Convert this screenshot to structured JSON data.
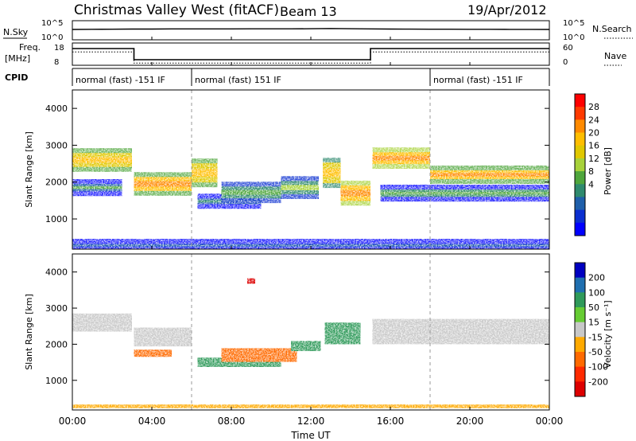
{
  "header": {
    "station": "Christmas Valley West (fitACF)",
    "beam": "Beam 13",
    "date": "19/Apr/2012"
  },
  "strip_labels": {
    "nsky": "N.Sky",
    "nsearch": "N.Search",
    "freq": "Freq.",
    "freq_unit": "[MHz]",
    "nave": "Nave",
    "cpid": "CPID"
  },
  "noise_axis": {
    "left_ticks": [
      "10^5",
      "10^0"
    ],
    "right_ticks": [
      "10^5",
      "10^0"
    ]
  },
  "freq_axis": {
    "left_ticks": [
      "18",
      "8"
    ],
    "right_ticks": [
      "60",
      "0"
    ]
  },
  "cpid_segments": [
    {
      "start_hour": 0,
      "end_hour": 6.0,
      "label": "normal (fast) -151 IF"
    },
    {
      "start_hour": 6.0,
      "end_hour": 18.0,
      "label": "normal (fast) 151 IF"
    },
    {
      "start_hour": 18.0,
      "end_hour": 24,
      "label": "normal (fast) -151 IF"
    }
  ],
  "time_axis": {
    "label": "Time UT",
    "ticks": [
      "00:00",
      "04:00",
      "08:00",
      "12:00",
      "16:00",
      "20:00",
      "00:00"
    ],
    "range_hours": [
      0,
      24
    ]
  },
  "range_axis": {
    "label": "Slant Range [km]",
    "ticks": [
      "4000",
      "3000",
      "2000",
      "1000"
    ],
    "range_km": [
      180,
      4500
    ]
  },
  "colorbars": {
    "power": {
      "label": "Power [dB]",
      "ticks": [
        "28",
        "24",
        "20",
        "16",
        "12",
        "8",
        "4"
      ],
      "colors": [
        "#ff0000",
        "#ff3a00",
        "#ff8a00",
        "#ffbe00",
        "#e0c800",
        "#a8d23a",
        "#4fa63c",
        "#2f8a6e",
        "#1f5faa",
        "#0b2fd0",
        "#0000ff"
      ]
    },
    "velocity": {
      "label": "Velocity [m s⁻¹]",
      "ticks": [
        "200",
        "100",
        "50",
        "15",
        "-15",
        "-50",
        "-100",
        "-200"
      ],
      "colors": [
        "#0000c0",
        "#1f6fb0",
        "#2f9a5a",
        "#66cc33",
        "#c8c8c8",
        "#ffaa00",
        "#ff6a00",
        "#ff2a00",
        "#dd0000"
      ]
    }
  },
  "chart_data": [
    {
      "type": "line",
      "title": "N.Sky / N.Search",
      "x_range": [
        0,
        24
      ],
      "y_scale": "log",
      "y_range": [
        1,
        100000
      ],
      "series": [
        {
          "name": "N.Sky",
          "x": [
            0,
            1,
            2,
            3,
            4,
            5,
            6,
            7,
            8,
            9,
            10,
            11,
            12,
            13,
            14,
            15,
            16,
            17,
            18,
            19,
            20,
            21,
            22,
            23,
            24
          ],
          "y": [
            500,
            550,
            600,
            650,
            650,
            700,
            700,
            720,
            720,
            740,
            760,
            760,
            800,
            900,
            800,
            700,
            650,
            620,
            600,
            580,
            560,
            560,
            540,
            540,
            520
          ]
        }
      ]
    },
    {
      "type": "line",
      "title": "Freq. / Nave",
      "x_range": [
        0,
        24
      ],
      "series": [
        {
          "name": "Freq.",
          "x": [
            0,
            3.1,
            3.1,
            15.0,
            15.0,
            24
          ],
          "y": [
            15.5,
            15.5,
            10.5,
            10.5,
            15.5,
            15.5
          ]
        },
        {
          "name": "Nave",
          "x": [
            0,
            3.1,
            3.1,
            15.0,
            15.0,
            24
          ],
          "y": [
            14,
            14,
            9,
            9,
            14,
            14
          ]
        }
      ]
    },
    {
      "type": "heatmap",
      "title": "Power [dB]",
      "xlabel": "Time UT",
      "ylabel": "Slant Range [km]",
      "x_range": [
        0,
        24
      ],
      "y_range": [
        180,
        4500
      ],
      "series": [
        {
          "start_hour": 0.0,
          "end_hour": 3.0,
          "center_km": 2600,
          "width_km": 380,
          "power_db": 24
        },
        {
          "start_hour": 0.0,
          "end_hour": 2.5,
          "center_km": 1850,
          "width_km": 200,
          "power_db": 12
        },
        {
          "start_hour": 3.1,
          "end_hour": 6.0,
          "center_km": 1950,
          "width_km": 380,
          "power_db": 26
        },
        {
          "start_hour": 6.0,
          "end_hour": 7.3,
          "center_km": 2250,
          "width_km": 520,
          "power_db": 24
        },
        {
          "start_hour": 6.3,
          "end_hour": 9.5,
          "center_km": 1480,
          "width_km": 150,
          "power_db": 10
        },
        {
          "start_hour": 7.5,
          "end_hour": 10.5,
          "center_km": 1720,
          "width_km": 320,
          "power_db": 14
        },
        {
          "start_hour": 10.5,
          "end_hour": 12.4,
          "center_km": 1850,
          "width_km": 360,
          "power_db": 15
        },
        {
          "start_hour": 12.6,
          "end_hour": 13.5,
          "center_km": 2250,
          "width_km": 560,
          "power_db": 22
        },
        {
          "start_hour": 13.5,
          "end_hour": 15.0,
          "center_km": 1700,
          "width_km": 420,
          "power_db": 27
        },
        {
          "start_hour": 15.1,
          "end_hour": 18.0,
          "center_km": 2650,
          "width_km": 320,
          "power_db": 27
        },
        {
          "start_hour": 18.0,
          "end_hour": 24.0,
          "center_km": 2200,
          "width_km": 240,
          "power_db": 25
        },
        {
          "start_hour": 15.5,
          "end_hour": 24.0,
          "center_km": 1700,
          "width_km": 200,
          "power_db": 13
        },
        {
          "start_hour": 0.0,
          "end_hour": 24.0,
          "center_km": 280,
          "width_km": 100,
          "power_db": 8
        }
      ]
    },
    {
      "type": "heatmap",
      "title": "Velocity [m s⁻¹]",
      "xlabel": "Time UT",
      "ylabel": "Slant Range [km]",
      "x_range": [
        0,
        24
      ],
      "y_range": [
        180,
        4500
      ],
      "series": [
        {
          "start_hour": 0.0,
          "end_hour": 3.0,
          "center_km": 2600,
          "width_km": 500,
          "velocity": 0
        },
        {
          "start_hour": 3.1,
          "end_hour": 6.0,
          "center_km": 2200,
          "width_km": 520,
          "velocity": 0
        },
        {
          "start_hour": 3.1,
          "end_hour": 5.0,
          "center_km": 1750,
          "width_km": 200,
          "velocity": -60
        },
        {
          "start_hour": 6.3,
          "end_hour": 10.5,
          "center_km": 1500,
          "width_km": 260,
          "velocity": 40
        },
        {
          "start_hour": 7.5,
          "end_hour": 11.3,
          "center_km": 1700,
          "width_km": 380,
          "velocity": -60
        },
        {
          "start_hour": 11.0,
          "end_hour": 12.5,
          "center_km": 1950,
          "width_km": 280,
          "velocity": 40
        },
        {
          "start_hour": 12.7,
          "end_hour": 14.5,
          "center_km": 2300,
          "width_km": 600,
          "velocity": 60
        },
        {
          "start_hour": 15.1,
          "end_hour": 24.0,
          "center_km": 2350,
          "width_km": 700,
          "velocity": 0
        },
        {
          "start_hour": 0.0,
          "end_hour": 24.0,
          "center_km": 280,
          "width_km": 100,
          "velocity": -30
        },
        {
          "start_hour": 8.8,
          "end_hour": 9.2,
          "center_km": 3750,
          "width_km": 150,
          "velocity": -220
        }
      ]
    }
  ]
}
